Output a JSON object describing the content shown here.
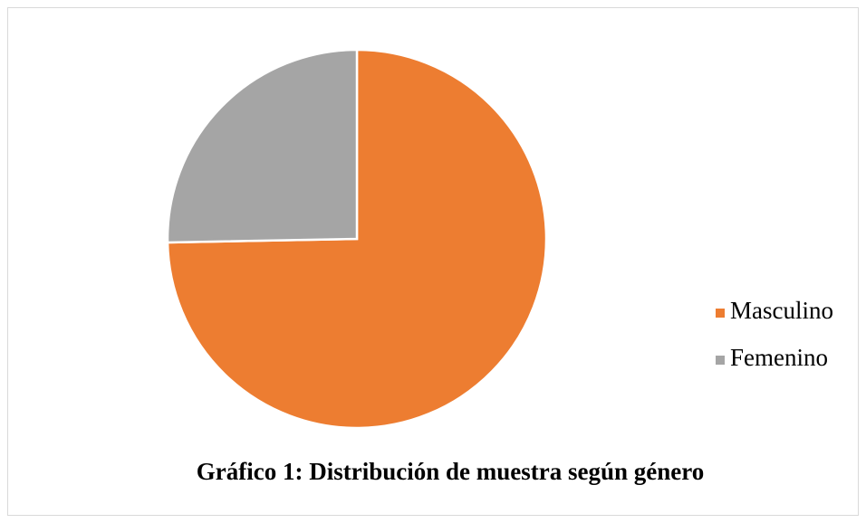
{
  "chart_data": {
    "type": "pie",
    "title": "Gráfico 1: Distribución de muestra según género",
    "categories": [
      "Masculino",
      "Femenino"
    ],
    "values": [
      74.7,
      25.3
    ],
    "colors": [
      "#ed7d31",
      "#a5a5a5"
    ],
    "legend": "right"
  }
}
